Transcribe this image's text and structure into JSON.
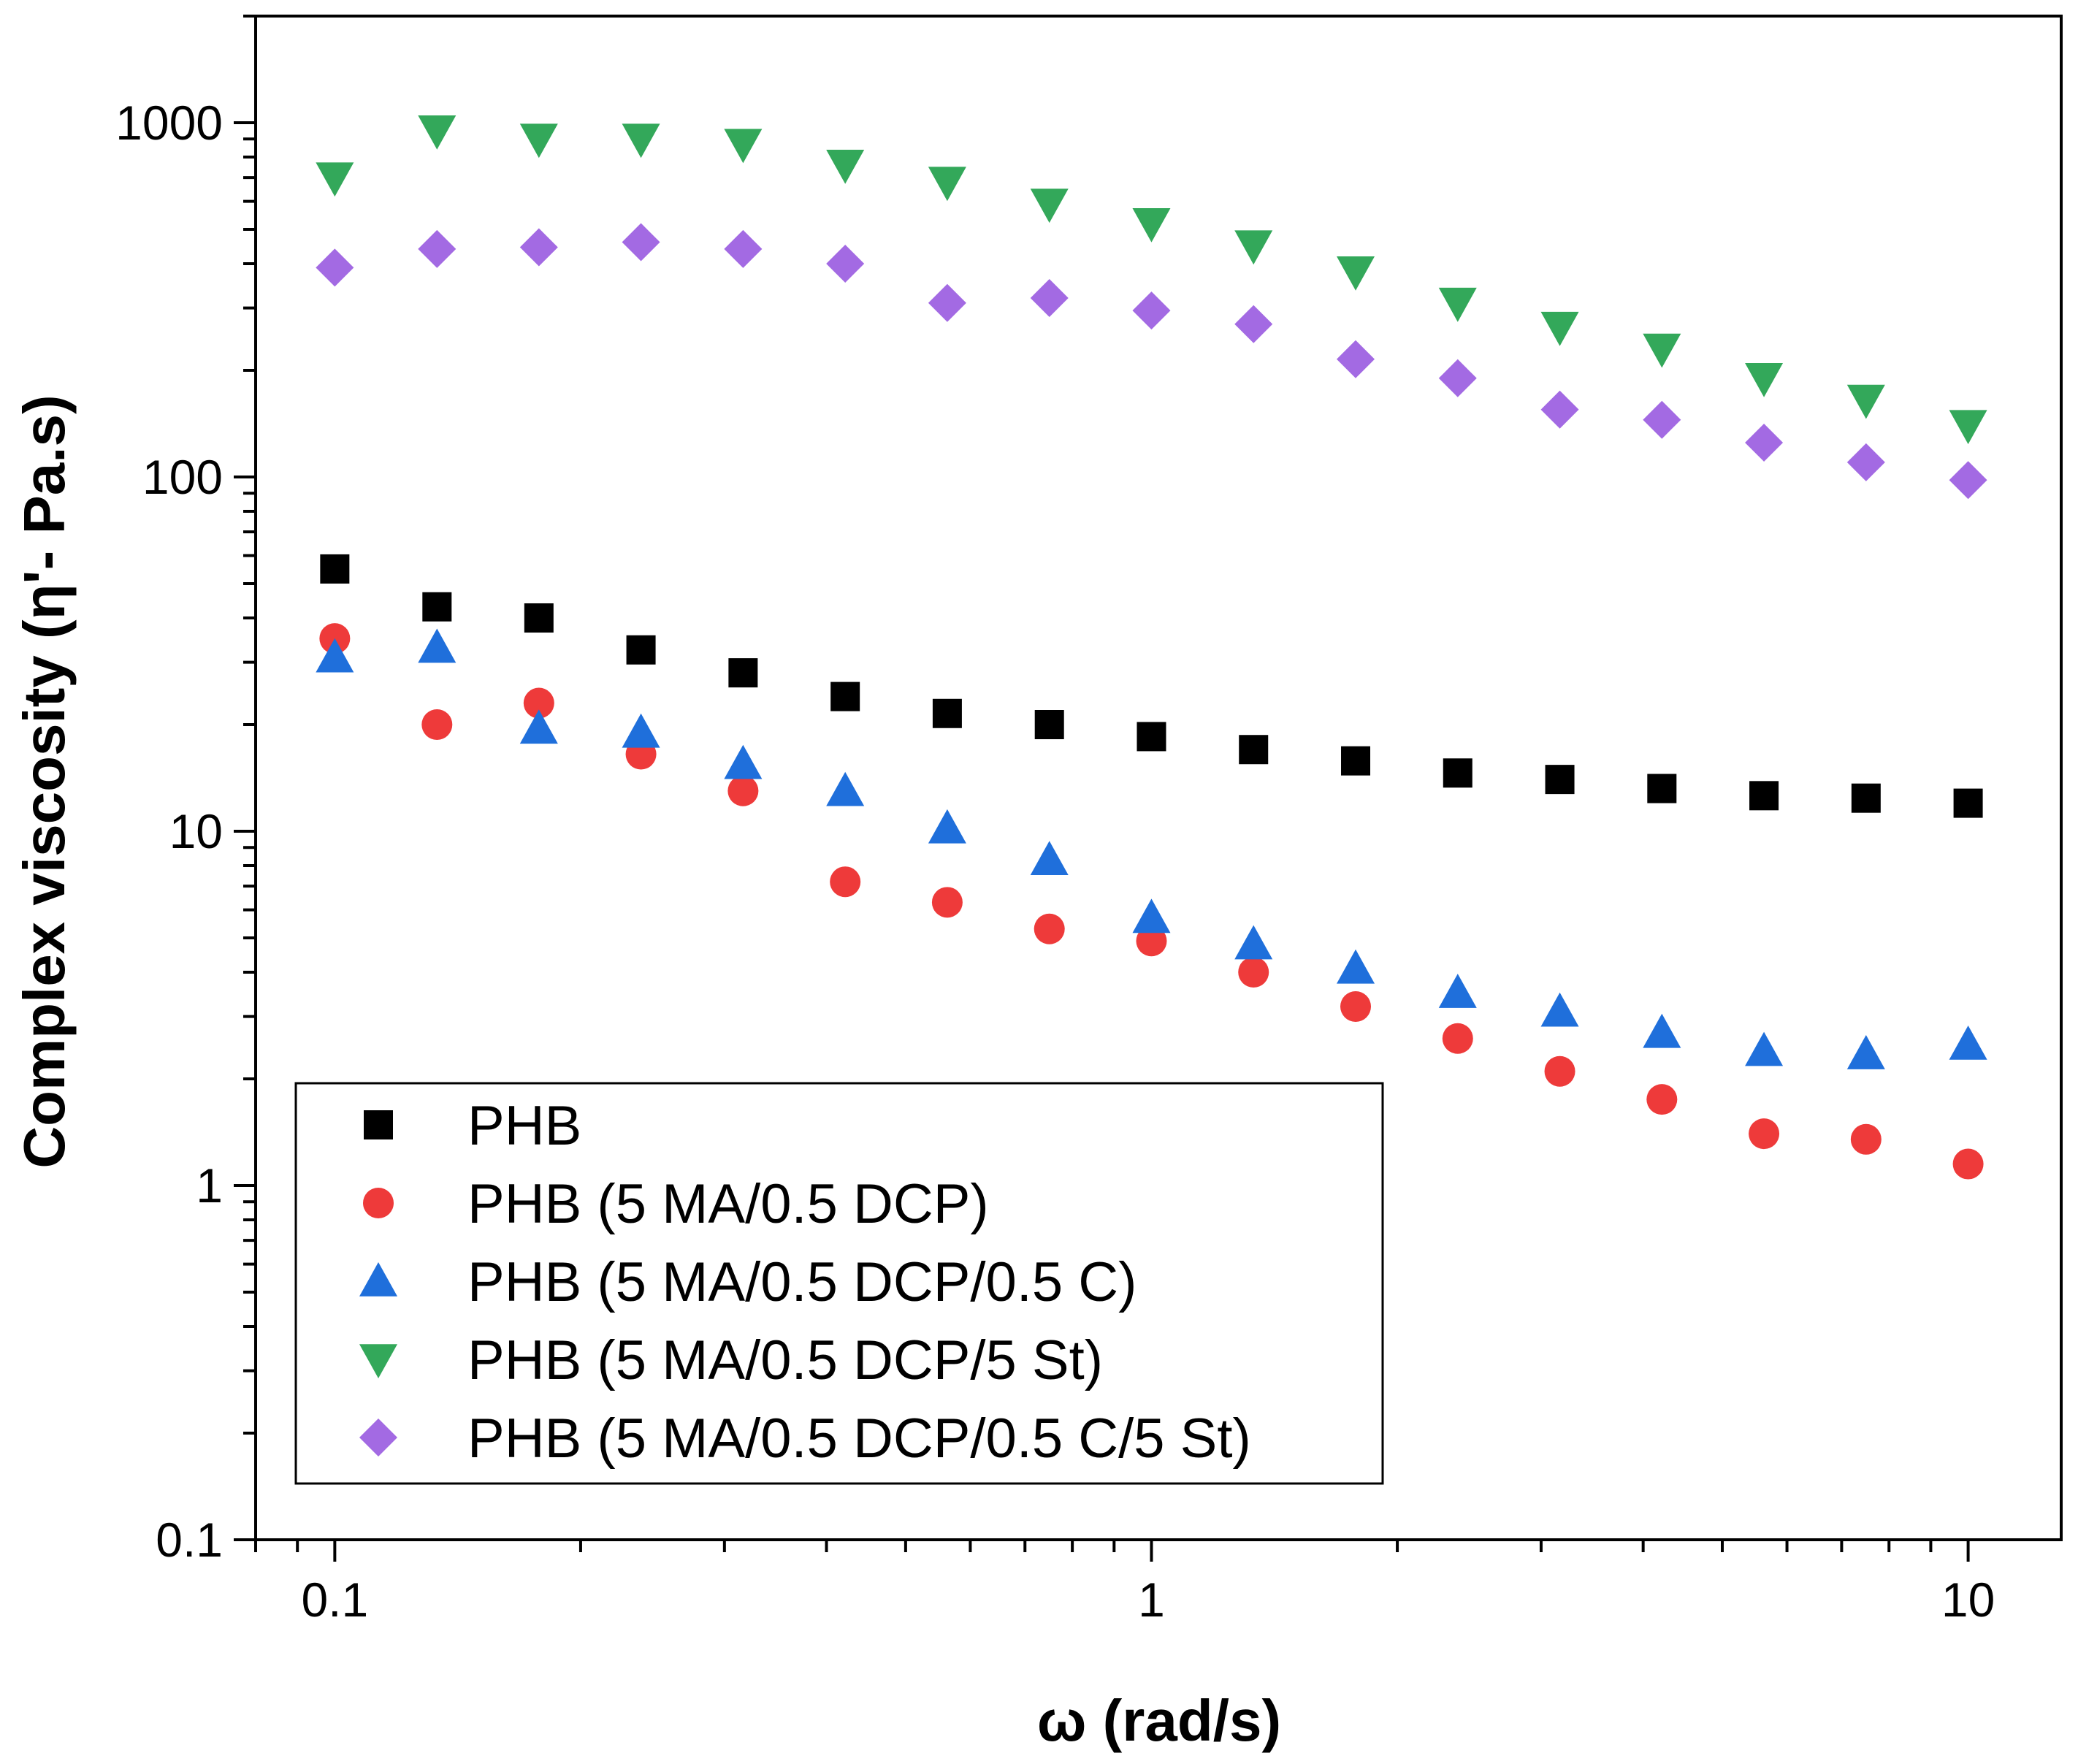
{
  "chart_data": {
    "type": "scatter",
    "title": "",
    "xlabel": "ω (rad/s)",
    "ylabel": "Complex viscosity (η'- Pa.s)",
    "xscale": "log",
    "yscale": "log",
    "xlim": [
      0.08,
      13
    ],
    "ylim": [
      0.1,
      2000
    ],
    "xticks": [
      0.1,
      1,
      10
    ],
    "xtick_labels": [
      "0.1",
      "1",
      "10"
    ],
    "yticks": [
      0.1,
      1,
      10,
      100,
      1000
    ],
    "ytick_labels": [
      "0.1",
      "1",
      "10",
      "100",
      "1000"
    ],
    "legend_position": "bottom-left",
    "x": [
      0.1,
      0.1334,
      0.1778,
      0.2371,
      0.3162,
      0.4217,
      0.5623,
      0.7499,
      1,
      1.3335,
      1.7783,
      2.3714,
      3.1623,
      4.217,
      5.6234,
      7.4989,
      10
    ],
    "series": [
      {
        "name": "PHB",
        "marker": "square",
        "color": "#000000",
        "values": [
          55,
          43,
          40,
          32.5,
          28,
          24,
          21.5,
          20,
          18.5,
          17,
          15.8,
          14.6,
          14,
          13.2,
          12.6,
          12.4,
          12
        ]
      },
      {
        "name": "PHB (5 MA/0.5 DCP)",
        "marker": "circle",
        "color": "#EE3A3A",
        "values": [
          35,
          20,
          23,
          16.5,
          13,
          7.2,
          6.3,
          5.3,
          4.9,
          4,
          3.2,
          2.6,
          2.1,
          1.75,
          1.4,
          1.35,
          1.15
        ]
      },
      {
        "name": "PHB (5 MA/0.5 DCP/0.5 C)",
        "marker": "triangle-up",
        "color": "#1F6FDB",
        "values": [
          31,
          33,
          19.5,
          19,
          15.5,
          13,
          10.2,
          8.3,
          5.7,
          4.8,
          4.1,
          3.5,
          3.1,
          2.7,
          2.4,
          2.35,
          2.5
        ]
      },
      {
        "name": "PHB (5 MA/0.5 DCP/5 St)",
        "marker": "triangle-down",
        "color": "#33A85A",
        "values": [
          700,
          950,
          900,
          900,
          870,
          760,
          680,
          590,
          520,
          450,
          380,
          310,
          265,
          230,
          190,
          165,
          140
        ]
      },
      {
        "name": "PHB (5 MA/0.5 DCP/0.5 C/5 St)",
        "marker": "diamond",
        "color": "#A36AE3",
        "values": [
          390,
          440,
          445,
          460,
          440,
          400,
          310,
          320,
          295,
          270,
          215,
          190,
          155,
          145,
          125,
          110,
          98
        ]
      }
    ]
  }
}
